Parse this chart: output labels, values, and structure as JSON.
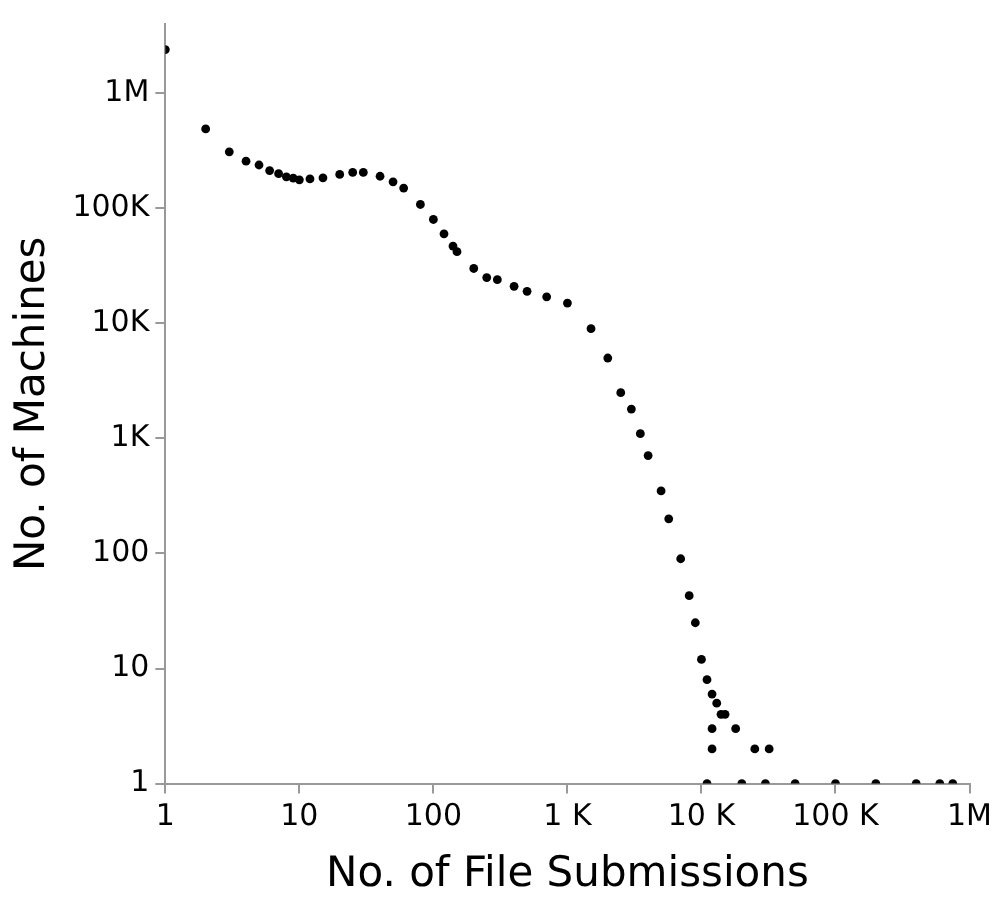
{
  "chart_data": {
    "type": "scatter",
    "xlabel": "No. of File Submissions",
    "ylabel": "No. of Machines",
    "log": "xy",
    "xlim": [
      1,
      1000000
    ],
    "ylim": [
      1,
      4000000
    ],
    "xticks": [
      1,
      10,
      100,
      {
        "value": 1000,
        "label": "1 K"
      },
      {
        "value": 10000,
        "label": "10 K"
      },
      {
        "value": 100000,
        "label": "100 K"
      },
      {
        "value": 1000000,
        "label": "1M"
      }
    ],
    "yticks": [
      1,
      10,
      100,
      {
        "value": 1000,
        "label": "1K"
      },
      {
        "value": 10000,
        "label": "10K"
      },
      {
        "value": 100000,
        "label": "100K"
      },
      {
        "value": 1000000,
        "label": "1M"
      }
    ],
    "grid": false,
    "legend": false,
    "marker": "circle",
    "series": [
      {
        "color": "#000000",
        "x": [
          1,
          2,
          3,
          4,
          5,
          6,
          7,
          8,
          9,
          10,
          12,
          15,
          20,
          25,
          30,
          40,
          50,
          60,
          80,
          100,
          120,
          140,
          150,
          200,
          250,
          300,
          400,
          500,
          700,
          1000,
          1500,
          2000,
          2500,
          3000,
          3500,
          4000,
          5000,
          5700,
          7000,
          8100,
          9000,
          10000,
          11000,
          12000,
          13000,
          15000,
          18000,
          25000,
          32000,
          11000,
          12000,
          12000,
          14000,
          20000,
          30000,
          50000,
          100000,
          200000,
          400000,
          600000,
          750000
        ],
        "values": [
          2400000,
          490000,
          310000,
          257000,
          238000,
          213000,
          200000,
          188000,
          183000,
          177000,
          180000,
          184000,
          197000,
          205000,
          205000,
          190000,
          170000,
          150000,
          108000,
          80000,
          60000,
          47000,
          42000,
          30000,
          25000,
          24000,
          21000,
          19000,
          17000,
          15000,
          9000,
          5000,
          2500,
          1800,
          1100,
          710,
          350,
          200,
          90,
          43,
          25,
          12,
          8,
          6,
          5,
          4,
          3,
          2,
          2,
          1,
          2,
          3,
          4,
          1,
          1,
          1,
          1,
          1,
          1,
          1,
          1
        ]
      }
    ]
  }
}
